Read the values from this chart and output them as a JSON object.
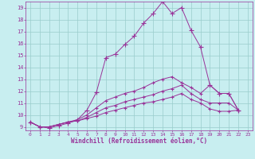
{
  "xlabel": "Windchill (Refroidissement éolien,°C)",
  "bg_color": "#c8eef0",
  "line_color": "#993399",
  "grid_color": "#99cccc",
  "tick_color": "#993399",
  "spine_color": "#993399",
  "xmin": 0,
  "xmax": 23,
  "ymin": 9,
  "ymax": 19,
  "lines": [
    [
      9.4,
      9.0,
      8.9,
      9.1,
      9.3,
      9.6,
      10.4,
      11.9,
      14.8,
      15.1,
      15.9,
      16.6,
      17.7,
      18.5,
      19.5,
      18.5,
      19.0,
      17.1,
      15.7,
      12.5,
      11.8,
      11.8,
      10.4
    ],
    [
      9.4,
      9.0,
      9.0,
      9.2,
      9.4,
      9.6,
      10.0,
      10.6,
      11.2,
      11.5,
      11.8,
      12.0,
      12.3,
      12.7,
      13.0,
      13.2,
      12.7,
      12.3,
      11.8,
      12.5,
      11.8,
      11.8,
      10.4
    ],
    [
      9.4,
      9.0,
      9.0,
      9.2,
      9.4,
      9.5,
      9.8,
      10.2,
      10.6,
      10.8,
      11.1,
      11.3,
      11.5,
      11.7,
      12.0,
      12.2,
      12.5,
      11.8,
      11.3,
      11.0,
      11.0,
      11.0,
      10.4
    ],
    [
      9.4,
      9.0,
      9.0,
      9.2,
      9.4,
      9.5,
      9.7,
      9.9,
      10.2,
      10.4,
      10.6,
      10.8,
      11.0,
      11.1,
      11.3,
      11.5,
      11.8,
      11.3,
      11.0,
      10.5,
      10.3,
      10.3,
      10.4
    ]
  ]
}
